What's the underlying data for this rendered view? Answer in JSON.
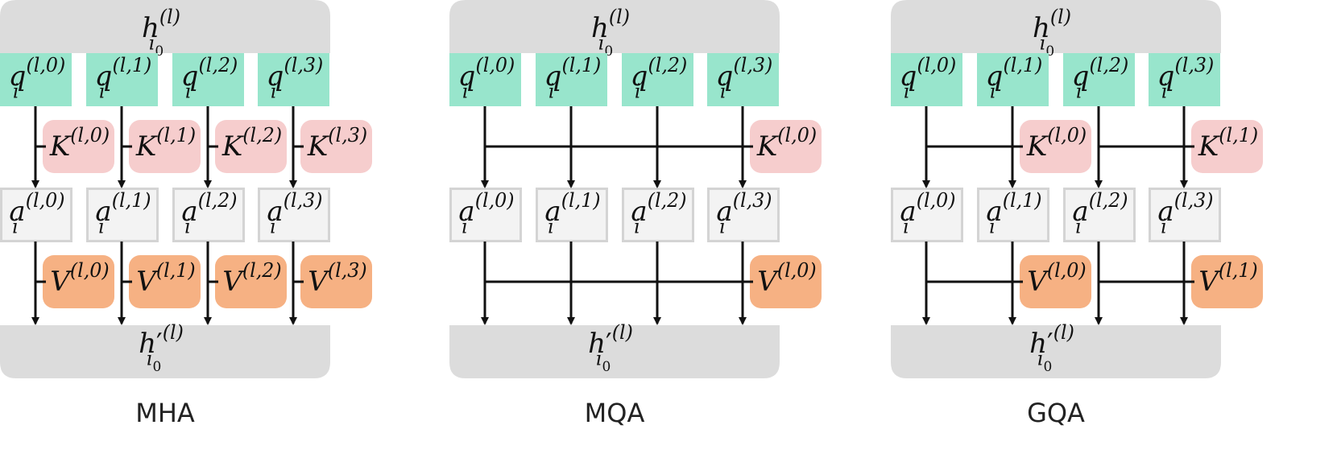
{
  "colors": {
    "h_box": "#dcdcdc",
    "q_box": "#98e5cc",
    "a_box_fill": "#f3f3f3",
    "a_box_stroke": "#d4d4d4",
    "k_box": "#f6cdcd",
    "v_box": "#f6b183",
    "line": "#111111"
  },
  "diagrams": [
    {
      "caption": "MHA",
      "h_top": {
        "base": "h",
        "sub": "i",
        "subsub": "0",
        "sup": "(l)"
      },
      "h_bottom": {
        "base": "h",
        "prime": "′",
        "sub": "i",
        "subsub": "0",
        "sup": "(l)"
      },
      "queries": [
        {
          "base": "q",
          "sub": "i",
          "sup": "(l,0)"
        },
        {
          "base": "q",
          "sub": "i",
          "sup": "(l,1)"
        },
        {
          "base": "q",
          "sub": "i",
          "sup": "(l,2)"
        },
        {
          "base": "q",
          "sub": "i",
          "sup": "(l,3)"
        }
      ],
      "attn": [
        {
          "base": "a",
          "sub": "i",
          "sup": "(l,0)"
        },
        {
          "base": "a",
          "sub": "i",
          "sup": "(l,1)"
        },
        {
          "base": "a",
          "sub": "i",
          "sup": "(l,2)"
        },
        {
          "base": "a",
          "sub": "i",
          "sup": "(l,3)"
        }
      ],
      "keys": [
        {
          "base": "K",
          "sup": "(l,0)"
        },
        {
          "base": "K",
          "sup": "(l,1)"
        },
        {
          "base": "K",
          "sup": "(l,2)"
        },
        {
          "base": "K",
          "sup": "(l,3)"
        }
      ],
      "values": [
        {
          "base": "V",
          "sup": "(l,0)"
        },
        {
          "base": "V",
          "sup": "(l,1)"
        },
        {
          "base": "V",
          "sup": "(l,2)"
        },
        {
          "base": "V",
          "sup": "(l,3)"
        }
      ]
    },
    {
      "caption": "MQA",
      "h_top": {
        "base": "h",
        "sub": "i",
        "subsub": "0",
        "sup": "(l)"
      },
      "h_bottom": {
        "base": "h",
        "prime": "′",
        "sub": "i",
        "subsub": "0",
        "sup": "(l)"
      },
      "queries": [
        {
          "base": "q",
          "sub": "i",
          "sup": "(l,0)"
        },
        {
          "base": "q",
          "sub": "i",
          "sup": "(l,1)"
        },
        {
          "base": "q",
          "sub": "i",
          "sup": "(l,2)"
        },
        {
          "base": "q",
          "sub": "i",
          "sup": "(l,3)"
        }
      ],
      "attn": [
        {
          "base": "a",
          "sub": "i",
          "sup": "(l,0)"
        },
        {
          "base": "a",
          "sub": "i",
          "sup": "(l,1)"
        },
        {
          "base": "a",
          "sub": "i",
          "sup": "(l,2)"
        },
        {
          "base": "a",
          "sub": "i",
          "sup": "(l,3)"
        }
      ],
      "keys": [
        {
          "base": "K",
          "sup": "(l,0)"
        }
      ],
      "values": [
        {
          "base": "V",
          "sup": "(l,0)"
        }
      ]
    },
    {
      "caption": "GQA",
      "h_top": {
        "base": "h",
        "sub": "i",
        "subsub": "0",
        "sup": "(l)"
      },
      "h_bottom": {
        "base": "h",
        "prime": "′",
        "sub": "i",
        "subsub": "0",
        "sup": "(l)"
      },
      "queries": [
        {
          "base": "q",
          "sub": "i",
          "sup": "(l,0)"
        },
        {
          "base": "q",
          "sub": "i",
          "sup": "(l,1)"
        },
        {
          "base": "q",
          "sub": "i",
          "sup": "(l,2)"
        },
        {
          "base": "q",
          "sub": "i",
          "sup": "(l,3)"
        }
      ],
      "attn": [
        {
          "base": "a",
          "sub": "i",
          "sup": "(l,0)"
        },
        {
          "base": "a",
          "sub": "i",
          "sup": "(l,1)"
        },
        {
          "base": "a",
          "sub": "i",
          "sup": "(l,2)"
        },
        {
          "base": "a",
          "sub": "i",
          "sup": "(l,3)"
        }
      ],
      "keys": [
        {
          "base": "K",
          "sup": "(l,0)"
        },
        {
          "base": "K",
          "sup": "(l,1)"
        }
      ],
      "values": [
        {
          "base": "V",
          "sup": "(l,0)"
        },
        {
          "base": "V",
          "sup": "(l,1)"
        }
      ]
    }
  ]
}
